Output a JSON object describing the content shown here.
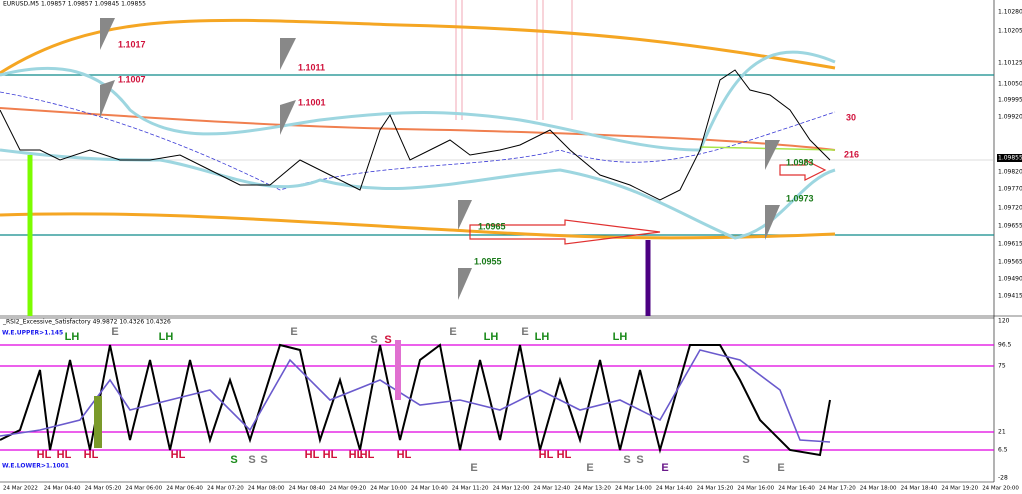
{
  "header": {
    "symbol": "EURUSD,M5  1.09857 1.09857 1.09845 1.09855"
  },
  "price_axis": {
    "labels": [
      "1.10280",
      "1.10205",
      "1.10125",
      "1.10050",
      "1.09995",
      "1.09920",
      "1.09855",
      "1.09820",
      "1.09770",
      "1.09720",
      "1.09655",
      "1.09615",
      "1.09565",
      "1.09490",
      "1.09415"
    ]
  },
  "price_annotations": [
    "1.1017",
    "1.1007",
    "1.1011",
    "1.1001",
    "1.0965",
    "1.0955",
    "1.0983",
    "1.0973",
    "30",
    "216"
  ],
  "indicator": {
    "title": "_RSI2_Excessive_Satisfactory 49.9872 10.4326 10.4326",
    "upper": "W.E.UPPER>1.145",
    "lower": "W.E.LOWER>1.1001",
    "axis": [
      "120",
      "96.5",
      "75",
      "21",
      "6.5",
      "-28"
    ],
    "signals": [
      "LH",
      "E",
      "LH",
      "E",
      "S",
      "S",
      "E",
      "LH",
      "E",
      "LH",
      "LH",
      "HL",
      "HL",
      "HL",
      "HL",
      "S",
      "S",
      "S",
      "HL",
      "HL",
      "HL",
      "HL",
      "HL",
      "E",
      "HL",
      "HL",
      "E",
      "S",
      "S",
      "E",
      "S",
      "E"
    ]
  },
  "time_axis": [
    "24 Mar 2022",
    "24 Mar 04:40",
    "24 Mar 05:20",
    "24 Mar 06:00",
    "24 Mar 06:40",
    "24 Mar 07:20",
    "24 Mar 08:00",
    "24 Mar 08:40",
    "24 Mar 09:20",
    "24 Mar 10:00",
    "24 Mar 10:40",
    "24 Mar 11:20",
    "24 Mar 12:00",
    "24 Mar 12:40",
    "24 Mar 13:20",
    "24 Mar 14:00",
    "24 Mar 14:40",
    "24 Mar 15:20",
    "24 Mar 16:00",
    "24 Mar 16:40",
    "24 Mar 17:20",
    "24 Mar 18:00",
    "24 Mar 18:40",
    "24 Mar 19:20",
    "24 Mar 20:00"
  ]
}
